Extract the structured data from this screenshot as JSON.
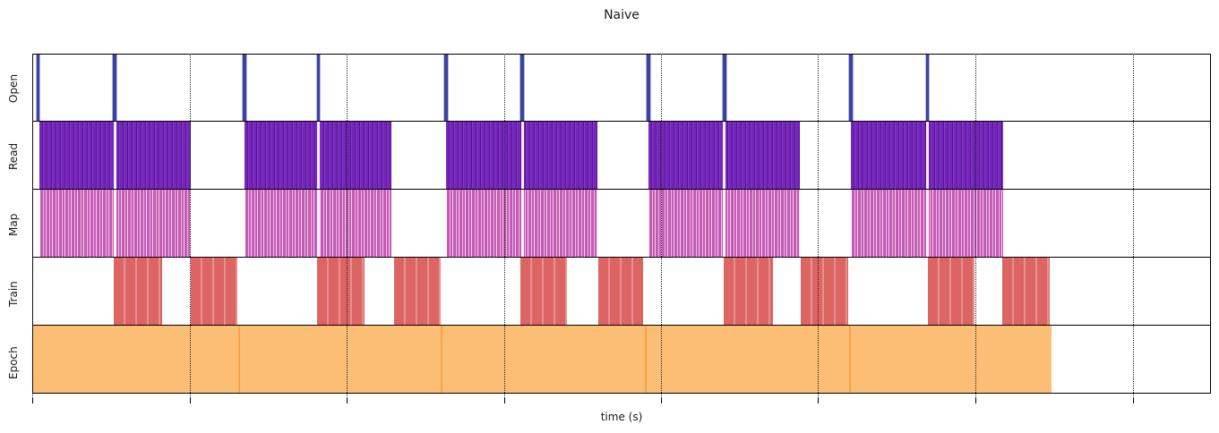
{
  "figure": {
    "title": "Naive",
    "xlabel": "time (s)"
  },
  "chart_data": {
    "type": "timeline",
    "subtype": "stacked event/interval tracks (matplotlib-style broken_barh, shared x axis)",
    "title": "Naive",
    "xlabel": "time (s)",
    "x_axis": {
      "tick_labels_visible": false,
      "unit": "percent of plot width (0-100), no numeric labels shown in image",
      "gridlines_pct": [
        0,
        13.37,
        26.67,
        40.05,
        53.34,
        66.64,
        80.02,
        93.39
      ],
      "grid_style": "dotted vertical lines"
    },
    "legend": "none",
    "tracks": [
      {
        "label": "Open",
        "kind": "event_lines",
        "color": "#3b42a0",
        "event_width_pct": 0.3,
        "events_pct": [
          0.42,
          6.95,
          17.93,
          24.24,
          35.11,
          41.57,
          52.28,
          58.74,
          69.45,
          75.99
        ]
      },
      {
        "label": "Read",
        "kind": "striped_blocks",
        "color": "#7227b9",
        "stripe_colors": [
          "#5a1297",
          "#8838c9"
        ],
        "blocks_pct": [
          [
            0.53,
            13.37
          ],
          [
            17.93,
            30.47
          ],
          [
            35.11,
            47.95
          ],
          [
            52.28,
            65.12
          ],
          [
            69.45,
            82.45
          ]
        ],
        "breaks_pct": [
          6.95,
          24.24,
          41.57,
          58.74,
          75.99
        ],
        "break_width_pct": 0.25
      },
      {
        "label": "Map",
        "kind": "striped_blocks",
        "color": "#c45ab5",
        "stripe_colors": [
          "#edb9e2",
          "#f3d4ec"
        ],
        "blocks_pct": [
          [
            0.61,
            13.37
          ],
          [
            18.01,
            30.47
          ],
          [
            35.19,
            47.95
          ],
          [
            52.36,
            65.12
          ],
          [
            69.53,
            82.45
          ]
        ],
        "breaks_pct": [
          6.95,
          24.24,
          41.57,
          58.74,
          75.99
        ],
        "break_width_pct": 0.25
      },
      {
        "label": "Train",
        "kind": "striped_blocks",
        "color": "#dc6462",
        "stripe_colors": [
          "#e7908f"
        ],
        "blocks_pct": [
          [
            6.84,
            10.94
          ],
          [
            13.37,
            17.33
          ],
          [
            24.09,
            28.19
          ],
          [
            30.7,
            34.65
          ],
          [
            41.41,
            45.36
          ],
          [
            48.02,
            51.82
          ],
          [
            58.66,
            62.84
          ],
          [
            65.2,
            69.22
          ],
          [
            75.99,
            80.02
          ],
          [
            82.37,
            86.4
          ]
        ],
        "breaks_pct": [],
        "break_width_pct": 0
      },
      {
        "label": "Epoch",
        "kind": "solid_blocks",
        "color": "#fcbe74",
        "edge_color": "#f5a54a",
        "blocks_pct": [
          [
            0.0,
            17.4
          ],
          [
            17.4,
            34.65
          ],
          [
            34.65,
            51.98
          ],
          [
            51.98,
            69.3
          ],
          [
            69.3,
            86.55
          ]
        ]
      }
    ]
  }
}
